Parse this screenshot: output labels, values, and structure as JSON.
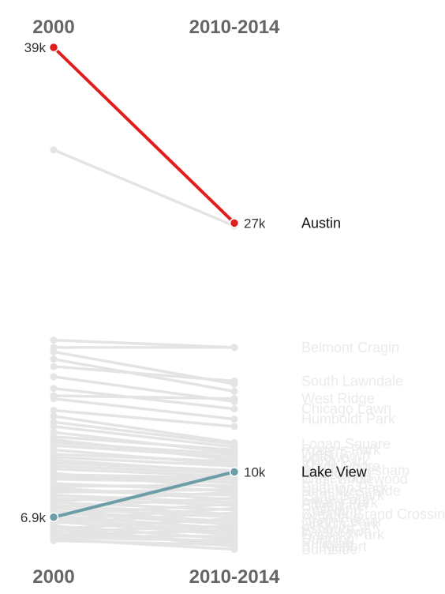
{
  "chart_data": {
    "type": "slope",
    "x": [
      "2000",
      "2010-2014"
    ],
    "colors": {
      "austin": "#e11e1e",
      "lakeview": "#6d9da7",
      "background": "#e4e4e4",
      "dim_label": "#ebebeb",
      "axis_title": "#666666"
    },
    "highlighted": [
      {
        "name": "Austin",
        "values": [
          39000,
          27000
        ],
        "start_label": "39k",
        "end_label": "27k",
        "color_key": "austin"
      },
      {
        "name": "Lake View",
        "values": [
          6900,
          10000
        ],
        "start_label": "6.9k",
        "end_label": "10k",
        "color_key": "lakeview"
      }
    ],
    "labeled_series": [
      {
        "name": "Belmont Cragin",
        "values": [
          18500,
          18500
        ]
      },
      {
        "name": "South Lawndale",
        "values": [
          17200,
          16200
        ]
      },
      {
        "name": "West Ridge",
        "values": [
          15200,
          15000
        ]
      },
      {
        "name": "Chicago Lawn",
        "values": [
          15700,
          14300
        ]
      },
      {
        "name": "Humboldt Park",
        "values": [
          15000,
          13600
        ]
      },
      {
        "name": "Logan Square",
        "values": [
          13400,
          11900
        ]
      },
      {
        "name": "Rogers Park",
        "values": [
          12400,
          11500
        ]
      },
      {
        "name": "West Town",
        "values": [
          12000,
          11200
        ]
      },
      {
        "name": "Uptown",
        "values": [
          11800,
          11000
        ]
      },
      {
        "name": "Irving Park",
        "values": [
          11200,
          10700
        ]
      },
      {
        "name": "South Shore",
        "values": [
          11000,
          10400
        ]
      },
      {
        "name": "Auburn Gresham",
        "values": [
          10600,
          10100
        ]
      },
      {
        "name": "New City",
        "values": [
          10400,
          9900
        ]
      },
      {
        "name": "Englewood",
        "values": [
          9800,
          9600
        ]
      },
      {
        "name": "West Englewood",
        "values": [
          9600,
          9500
        ]
      },
      {
        "name": "Brighton Park",
        "values": [
          9900,
          8900
        ]
      },
      {
        "name": "Near West Side",
        "values": [
          9200,
          8700
        ]
      },
      {
        "name": "Portage Park",
        "values": [
          8700,
          8400
        ]
      },
      {
        "name": "Gage Park",
        "values": [
          8900,
          8100
        ]
      },
      {
        "name": "Albany Park",
        "values": [
          8400,
          7900
        ]
      },
      {
        "name": "Edgewater",
        "values": [
          8200,
          7700
        ]
      },
      {
        "name": "Roseland",
        "values": [
          7900,
          7400
        ]
      },
      {
        "name": "Greater Grand Crossing",
        "values": [
          7700,
          7100
        ]
      },
      {
        "name": "Avondale",
        "values": [
          7500,
          6900
        ]
      },
      {
        "name": "North Center",
        "values": [
          7300,
          6600
        ]
      },
      {
        "name": "Lincoln Park",
        "values": [
          7200,
          6400
        ]
      },
      {
        "name": "Ashburn",
        "values": [
          7000,
          6100
        ]
      },
      {
        "name": "West Lawn",
        "values": [
          6800,
          5900
        ]
      },
      {
        "name": "Garfield Park",
        "values": [
          6600,
          5700
        ]
      },
      {
        "name": "Dunning",
        "values": [
          6300,
          5400
        ]
      },
      {
        "name": "Pullman",
        "values": [
          6000,
          5100
        ]
      },
      {
        "name": "Bridgeport",
        "values": [
          6200,
          4900
        ]
      },
      {
        "name": "Burnside",
        "values": [
          5400,
          4700
        ]
      }
    ],
    "background_series": [
      {
        "values": [
          32000,
          26800
        ]
      },
      {
        "values": [
          19000,
          18500
        ]
      },
      {
        "values": [
          18200,
          16000
        ]
      },
      {
        "values": [
          17700,
          15500
        ]
      },
      {
        "values": [
          16500,
          14800
        ]
      },
      {
        "values": [
          14200,
          13100
        ]
      },
      {
        "values": [
          13800,
          12000
        ]
      },
      {
        "values": [
          13100,
          11700
        ]
      },
      {
        "values": [
          12700,
          11300
        ]
      },
      {
        "values": [
          12200,
          10800
        ]
      },
      {
        "values": [
          11500,
          10500
        ]
      },
      {
        "values": [
          10800,
          10000
        ]
      },
      {
        "values": [
          10200,
          9700
        ]
      },
      {
        "values": [
          9500,
          9300
        ]
      },
      {
        "values": [
          9000,
          9100
        ]
      },
      {
        "values": [
          8600,
          8800
        ]
      },
      {
        "values": [
          8000,
          8600
        ]
      },
      {
        "values": [
          7600,
          8200
        ]
      },
      {
        "values": [
          7100,
          7800
        ]
      },
      {
        "values": [
          6700,
          7500
        ]
      },
      {
        "values": [
          6500,
          7200
        ]
      },
      {
        "values": [
          6100,
          6800
        ]
      },
      {
        "values": [
          5900,
          6300
        ]
      },
      {
        "values": [
          5700,
          6000
        ]
      },
      {
        "values": [
          5600,
          5600
        ]
      },
      {
        "values": [
          5500,
          5300
        ]
      },
      {
        "values": [
          5300,
          5000
        ]
      }
    ],
    "ylim": [
      5000,
      39000
    ]
  }
}
